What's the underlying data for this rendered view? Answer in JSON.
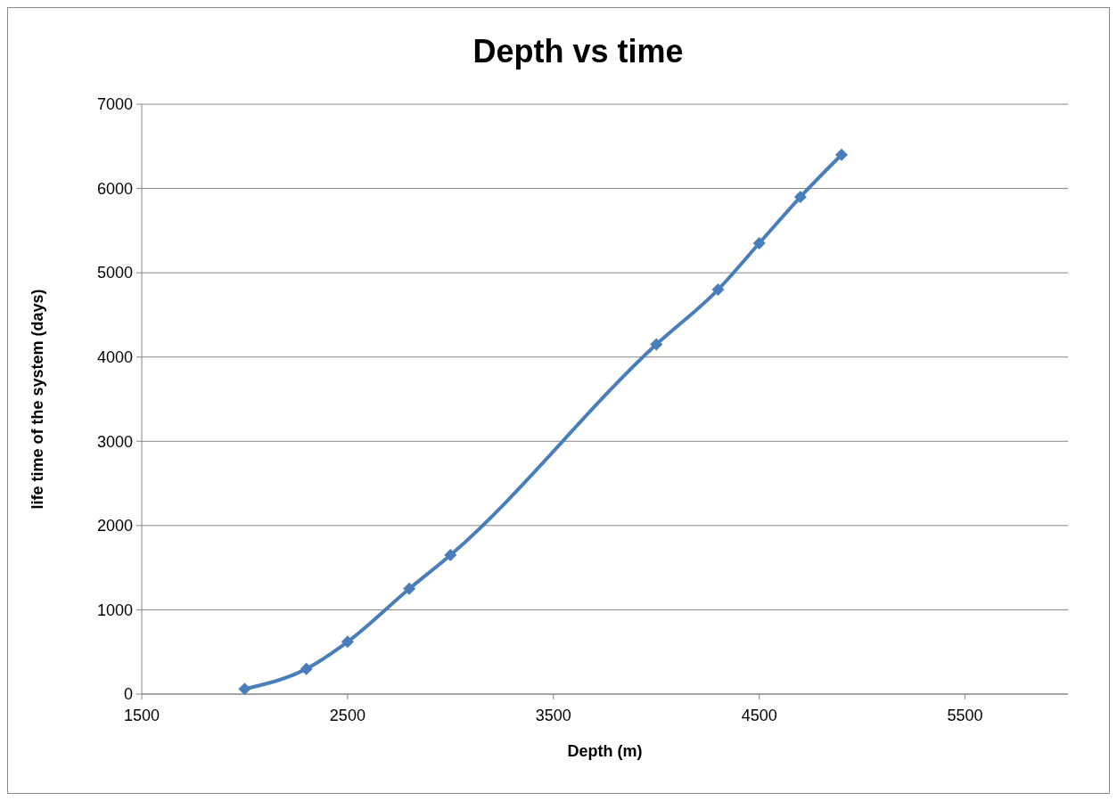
{
  "chart_data": {
    "type": "line",
    "title": "Depth vs time",
    "xlabel": "Depth (m)",
    "ylabel": "life time of the system (days)",
    "x": [
      2000,
      2300,
      2500,
      2800,
      3000,
      4000,
      4300,
      4500,
      4700,
      4900
    ],
    "series": [
      {
        "color": "#4a7ebb",
        "values": [
          60,
          300,
          620,
          1250,
          1650,
          4150,
          4800,
          5350,
          5900,
          6400
        ]
      }
    ],
    "xlim": [
      1500,
      6000
    ],
    "xticks": [
      1500,
      2500,
      3500,
      4500,
      5500
    ],
    "ylim": [
      0,
      7000
    ],
    "yticks": [
      0,
      1000,
      2000,
      3000,
      4000,
      5000,
      6000,
      7000
    ],
    "grid": "y",
    "marker": "diamond",
    "line_style": "solid"
  }
}
